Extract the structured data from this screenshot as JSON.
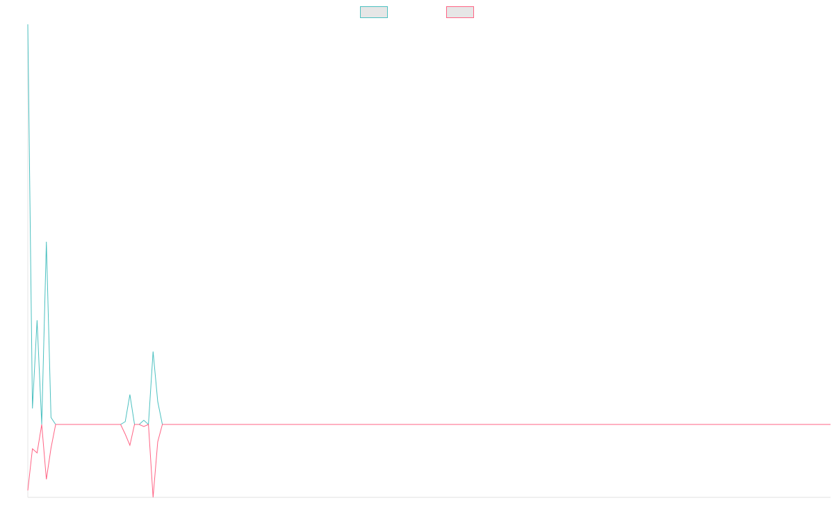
{
  "chart_data": {
    "type": "line",
    "categories": [
      null,
      null,
      null,
      null,
      null,
      null,
      null,
      null,
      null,
      null,
      null,
      null,
      null,
      null,
      null,
      null,
      null,
      null,
      null,
      null,
      null,
      null,
      null,
      null,
      null,
      null,
      null,
      null,
      null,
      null,
      null,
      null,
      null,
      null,
      null,
      null,
      null,
      null,
      null,
      null,
      null,
      null,
      null,
      null,
      null,
      null,
      null,
      null,
      null,
      null,
      null,
      null,
      null,
      null,
      null,
      null,
      null,
      null,
      null,
      null,
      null,
      null,
      null,
      null,
      null,
      null,
      null,
      null,
      null,
      null,
      null,
      null,
      null,
      null,
      null,
      null,
      null,
      null,
      null,
      null,
      null,
      null,
      null,
      null,
      null,
      null,
      null,
      null,
      null,
      null,
      null,
      null,
      null,
      null,
      null,
      null,
      null,
      null,
      null,
      null,
      null,
      null,
      null,
      null,
      null,
      null,
      null,
      null,
      null,
      null,
      null,
      null,
      null,
      null,
      null,
      null,
      null,
      null,
      null,
      null,
      null,
      null,
      null,
      null,
      null,
      null,
      null,
      null,
      null,
      null,
      null,
      null,
      null,
      null,
      null,
      null,
      null,
      null,
      null,
      null,
      null,
      null,
      null,
      null,
      null,
      null,
      null,
      null,
      null,
      null,
      null,
      null,
      null,
      null,
      null,
      null,
      null,
      null,
      null,
      null,
      null,
      null,
      null,
      null,
      null,
      null,
      null,
      null,
      null,
      null,
      null,
      null,
      null,
      null
    ],
    "series": [
      {
        "color": "#4bc0c0",
        "values": [
          576,
          23,
          150,
          0,
          263,
          10,
          0,
          0,
          0,
          0,
          0,
          0,
          0,
          0,
          0,
          0,
          0,
          0,
          0,
          0,
          0,
          4,
          43,
          0,
          0,
          6,
          0,
          105,
          33,
          0,
          0,
          0,
          0,
          0,
          0,
          0,
          0,
          0,
          0,
          0,
          0,
          0,
          0,
          0,
          0,
          0,
          0,
          0,
          0,
          0,
          0,
          0,
          0,
          0,
          0,
          0,
          0,
          0,
          0,
          0,
          0,
          0,
          0,
          0,
          0,
          0,
          0,
          0,
          0,
          0,
          0,
          0,
          0,
          0,
          0,
          0,
          0,
          0,
          0,
          0,
          0,
          0,
          0,
          0,
          0,
          0,
          0,
          0,
          0,
          0,
          0,
          0,
          0,
          0,
          0,
          0,
          0,
          0,
          0,
          0,
          0,
          0,
          0,
          0,
          0,
          0,
          0,
          0,
          0,
          0,
          0,
          0,
          0,
          0,
          0,
          0,
          0,
          0,
          0,
          0,
          0,
          0,
          0,
          0,
          0,
          0,
          0,
          0,
          0,
          0,
          0,
          0,
          0,
          0,
          0,
          0,
          0,
          0,
          0,
          0,
          0,
          0,
          0,
          0,
          0,
          0,
          0,
          0,
          0,
          0,
          0,
          0,
          0,
          0,
          0,
          0,
          0,
          0,
          0,
          0,
          0,
          0,
          0,
          0,
          0,
          0,
          0,
          0,
          0,
          0,
          0,
          0,
          0,
          0
        ]
      },
      {
        "color": "#ff6384",
        "values": [
          -95,
          -35,
          -41,
          0,
          -79,
          -34,
          0,
          0,
          0,
          0,
          0,
          0,
          0,
          0,
          0,
          0,
          0,
          0,
          0,
          0,
          0,
          -14,
          -30,
          0,
          0,
          -3,
          0,
          -105,
          -25,
          0,
          0,
          0,
          0,
          0,
          0,
          0,
          0,
          0,
          0,
          0,
          0,
          0,
          0,
          0,
          0,
          0,
          0,
          0,
          0,
          0,
          0,
          0,
          0,
          0,
          0,
          0,
          0,
          0,
          0,
          0,
          0,
          0,
          0,
          0,
          0,
          0,
          0,
          0,
          0,
          0,
          0,
          0,
          0,
          0,
          0,
          0,
          0,
          0,
          0,
          0,
          0,
          0,
          0,
          0,
          0,
          0,
          0,
          0,
          0,
          0,
          0,
          0,
          0,
          0,
          0,
          0,
          0,
          0,
          0,
          0,
          0,
          0,
          0,
          0,
          0,
          0,
          0,
          0,
          0,
          0,
          0,
          0,
          0,
          0,
          0,
          0,
          0,
          0,
          0,
          0,
          0,
          0,
          0,
          0,
          0,
          0,
          0,
          0,
          0,
          0,
          0,
          0,
          0,
          0,
          0,
          0,
          0,
          0,
          0,
          0,
          0,
          0,
          0,
          0,
          0,
          0,
          0,
          0,
          0,
          0,
          0,
          0,
          0,
          0,
          0,
          0,
          0,
          0,
          0,
          0,
          0,
          0,
          0,
          0,
          0,
          0,
          0,
          0,
          0,
          0,
          0,
          0,
          0,
          0
        ]
      }
    ],
    "ylim": [
      -105,
      576
    ],
    "legend": "top",
    "grid": false
  }
}
